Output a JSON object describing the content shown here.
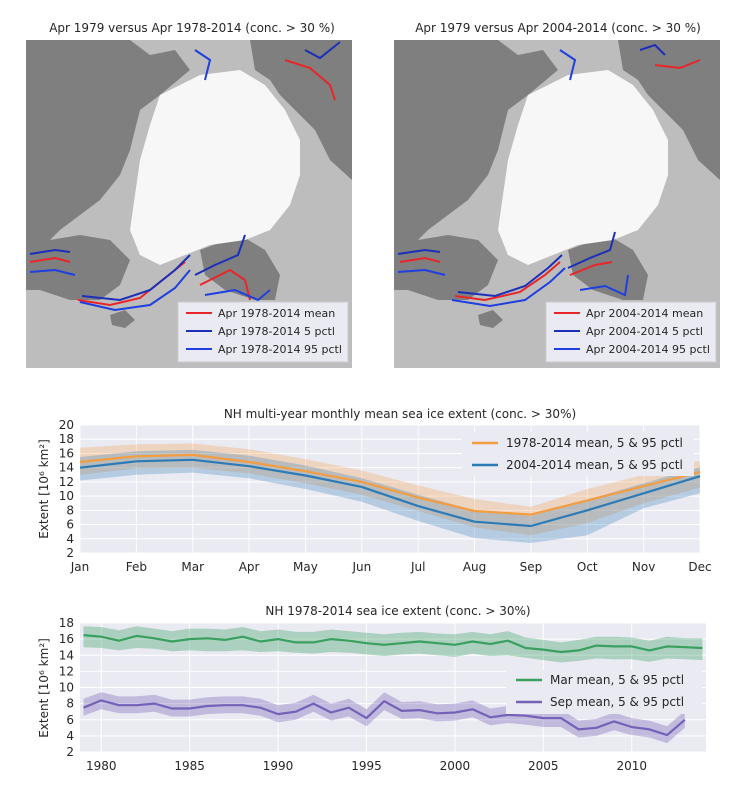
{
  "maps": [
    {
      "title": "Apr 1979 versus Apr 1978-2014 (conc. > 30 %)",
      "legend": [
        "Apr 1978-2014 mean",
        "Apr 1978-2014 5 pctl",
        "Apr 1978-2014 95 pctl"
      ],
      "colors": {
        "mean": "#e8262a",
        "p5": "#1c2fb8",
        "p95": "#1f3fe0"
      }
    },
    {
      "title": "Apr 1979 versus Apr 2004-2014 (conc. > 30 %)",
      "legend": [
        "Apr 2004-2014 mean",
        "Apr 2004-2014 5 pctl",
        "Apr 2004-2014 95 pctl"
      ],
      "colors": {
        "mean": "#e8262a",
        "p5": "#1c2fb8",
        "p95": "#1f3fe0"
      }
    }
  ],
  "chart_data": [
    {
      "type": "line",
      "title": "NH multi-year monthly mean sea ice extent (conc. > 30%)",
      "ylabel": "Extent [10⁶ km²]",
      "ylim": [
        2,
        20
      ],
      "yticks": [
        2,
        4,
        6,
        8,
        10,
        12,
        14,
        16,
        18,
        20
      ],
      "categories": [
        "Jan",
        "Feb",
        "Mar",
        "Apr",
        "May",
        "Jun",
        "Jul",
        "Aug",
        "Sep",
        "Oct",
        "Nov",
        "Dec"
      ],
      "grid": true,
      "legend_position": "top-right",
      "series": [
        {
          "name": "1978-2014 mean, 5 & 95 pctl",
          "color": "#f39c40",
          "values": [
            14.8,
            15.6,
            15.8,
            14.8,
            13.5,
            12.0,
            9.8,
            7.9,
            7.4,
            9.4,
            11.4,
            13.4
          ],
          "p5": [
            13.0,
            13.9,
            14.0,
            13.2,
            11.8,
            10.2,
            7.9,
            5.6,
            4.5,
            6.2,
            9.0,
            11.2
          ],
          "p95": [
            16.8,
            17.3,
            17.4,
            16.6,
            15.2,
            13.6,
            11.5,
            9.6,
            8.5,
            11.0,
            13.0,
            15.0
          ]
        },
        {
          "name": "2004-2014 mean, 5 & 95 pctl",
          "color": "#2c7bb6",
          "values": [
            14.0,
            14.9,
            15.1,
            14.2,
            12.9,
            11.3,
            8.6,
            6.4,
            5.8,
            8.0,
            10.4,
            12.8
          ],
          "p5": [
            12.2,
            13.0,
            13.3,
            12.5,
            11.0,
            9.2,
            6.5,
            4.1,
            3.4,
            4.5,
            8.3,
            10.4
          ],
          "p95": [
            15.5,
            16.3,
            16.5,
            15.7,
            14.3,
            12.5,
            10.2,
            8.0,
            7.2,
            9.5,
            11.8,
            14.1
          ]
        }
      ]
    },
    {
      "type": "line",
      "title": "NH 1978-2014 sea ice extent (conc. > 30%)",
      "ylabel": "Extent [10⁶ km²]",
      "ylim": [
        2,
        18
      ],
      "yticks": [
        2,
        4,
        6,
        8,
        10,
        12,
        14,
        16,
        18
      ],
      "xlim": [
        1978.8,
        2014.2
      ],
      "xticks": [
        1980,
        1985,
        1990,
        1995,
        2000,
        2005,
        2010
      ],
      "grid": true,
      "legend_position": "center-right",
      "series": [
        {
          "name": "Mar mean, 5 & 95 pctl",
          "color": "#3aa060",
          "x": [
            1979,
            1980,
            1981,
            1982,
            1983,
            1984,
            1985,
            1986,
            1987,
            1988,
            1989,
            1990,
            1991,
            1992,
            1993,
            1994,
            1995,
            1996,
            1997,
            1998,
            1999,
            2000,
            2001,
            2002,
            2003,
            2004,
            2005,
            2006,
            2007,
            2008,
            2009,
            2010,
            2011,
            2012,
            2013,
            2014
          ],
          "values": [
            16.5,
            16.3,
            15.8,
            16.4,
            16.1,
            15.7,
            16.0,
            16.1,
            15.9,
            16.3,
            15.7,
            16.0,
            15.6,
            15.6,
            16.0,
            15.8,
            15.5,
            15.3,
            15.5,
            15.7,
            15.5,
            15.3,
            15.7,
            15.4,
            15.8,
            14.9,
            14.7,
            14.4,
            14.6,
            15.2,
            15.1,
            15.1,
            14.6,
            15.1,
            15.0,
            14.9
          ],
          "p5": [
            15.0,
            14.9,
            14.6,
            14.9,
            14.8,
            14.5,
            14.6,
            14.5,
            14.5,
            14.6,
            14.4,
            14.5,
            14.3,
            14.2,
            14.4,
            14.3,
            14.1,
            13.9,
            14.1,
            14.2,
            14.0,
            13.8,
            14.2,
            13.9,
            14.0,
            13.7,
            13.4,
            13.1,
            13.3,
            13.6,
            13.5,
            13.5,
            13.2,
            13.6,
            13.5,
            13.4
          ],
          "p95": [
            17.6,
            17.5,
            17.1,
            17.6,
            17.3,
            17.0,
            17.3,
            17.3,
            17.2,
            17.5,
            17.0,
            17.2,
            16.9,
            16.9,
            17.2,
            17.0,
            16.8,
            16.6,
            16.8,
            16.9,
            16.7,
            16.6,
            16.9,
            16.6,
            17.0,
            16.2,
            15.9,
            15.6,
            15.9,
            16.3,
            16.3,
            16.2,
            15.8,
            16.3,
            16.1,
            16.1
          ]
        },
        {
          "name": "Sep mean, 5 & 95 pctl",
          "color": "#7561b8",
          "x": [
            1979,
            1980,
            1981,
            1982,
            1983,
            1984,
            1985,
            1986,
            1987,
            1988,
            1989,
            1990,
            1991,
            1992,
            1993,
            1994,
            1995,
            1996,
            1997,
            1998,
            1999,
            2000,
            2001,
            2002,
            2003,
            2004,
            2005,
            2006,
            2007,
            2008,
            2009,
            2010,
            2011,
            2012,
            2013
          ],
          "values": [
            7.5,
            8.4,
            7.8,
            7.8,
            8.0,
            7.4,
            7.4,
            7.7,
            7.8,
            7.8,
            7.5,
            6.7,
            7.0,
            8.0,
            6.9,
            7.5,
            6.2,
            8.3,
            7.1,
            7.2,
            6.8,
            6.9,
            7.3,
            6.3,
            6.6,
            6.5,
            6.2,
            6.2,
            4.8,
            5.0,
            5.8,
            5.1,
            4.8,
            4.1,
            6.0
          ],
          "p5": [
            6.5,
            7.3,
            6.8,
            6.8,
            7.0,
            6.4,
            6.4,
            6.7,
            6.8,
            6.8,
            6.5,
            5.7,
            6.0,
            7.0,
            5.9,
            6.4,
            5.2,
            7.2,
            6.1,
            6.2,
            5.8,
            5.9,
            6.3,
            5.3,
            5.6,
            5.4,
            5.1,
            5.1,
            3.8,
            4.0,
            4.7,
            4.1,
            3.8,
            3.1,
            5.0
          ],
          "p95": [
            8.6,
            9.4,
            8.9,
            8.9,
            9.1,
            8.5,
            8.5,
            8.8,
            8.9,
            8.9,
            8.6,
            7.8,
            8.1,
            9.1,
            8.0,
            8.6,
            7.3,
            9.4,
            8.2,
            8.3,
            7.9,
            8.0,
            8.4,
            7.4,
            7.7,
            7.6,
            7.3,
            7.3,
            5.9,
            6.1,
            6.9,
            6.2,
            5.9,
            5.2,
            7.1
          ]
        }
      ]
    }
  ]
}
